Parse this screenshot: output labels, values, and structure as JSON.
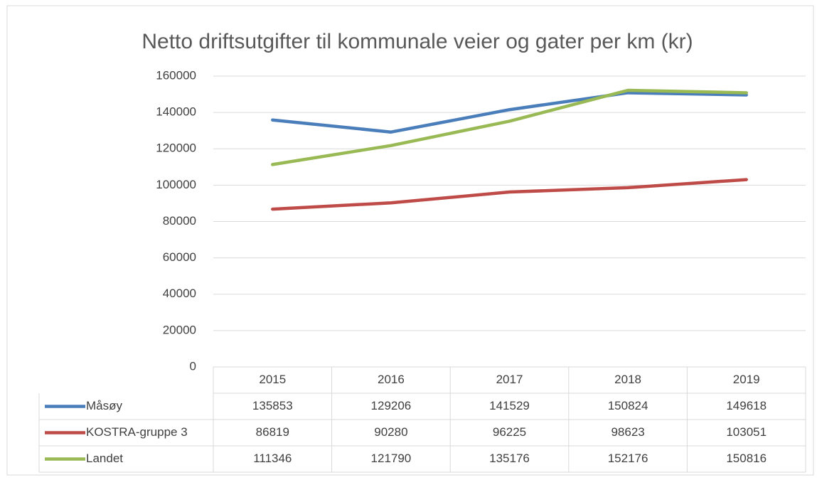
{
  "chart_data": {
    "type": "line",
    "title": "Netto driftsutgifter til kommunale veier og gater per km (kr)",
    "categories": [
      "2015",
      "2016",
      "2017",
      "2018",
      "2019"
    ],
    "series": [
      {
        "name": "Måsøy",
        "color": "#4a7ebb",
        "values": [
          135853,
          129206,
          141529,
          150824,
          149618
        ]
      },
      {
        "name": "KOSTRA-gruppe 3",
        "color": "#be4b48",
        "values": [
          86819,
          90280,
          96225,
          98623,
          103051
        ]
      },
      {
        "name": "Landet",
        "color": "#98b954",
        "values": [
          111346,
          121790,
          135176,
          152176,
          150816
        ]
      }
    ],
    "ylim": [
      0,
      160000
    ],
    "yticks": [
      0,
      20000,
      40000,
      60000,
      80000,
      100000,
      120000,
      140000,
      160000
    ],
    "grid": true
  }
}
